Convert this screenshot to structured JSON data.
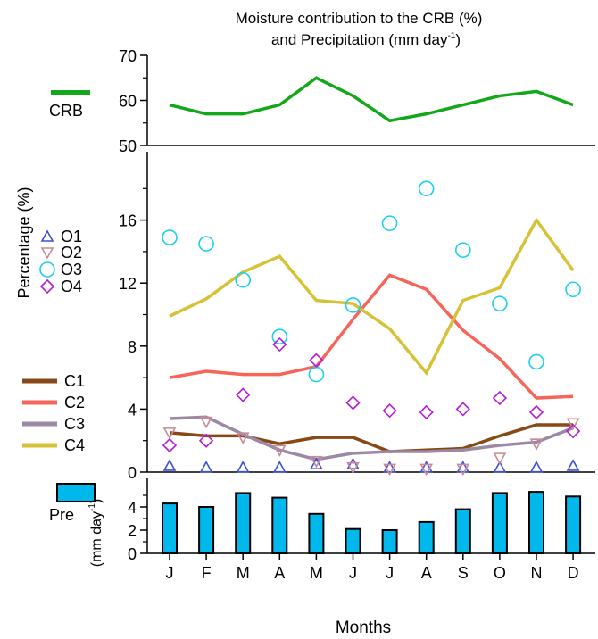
{
  "chart_data": {
    "title_line1": "Moisture contribution to the CRB (%)",
    "title_line2": "and Precipitation (mm day",
    "title_sup": "-1",
    "title_line2_end": ")",
    "xlabel": "Months",
    "categories": [
      "J",
      "F",
      "M",
      "A",
      "M",
      "J",
      "J",
      "A",
      "S",
      "O",
      "N",
      "D"
    ],
    "panels": [
      {
        "id": "top",
        "type": "line",
        "ylim": [
          50,
          70
        ],
        "yticks": [
          "50",
          "60",
          "70"
        ],
        "ytick_values": [
          50,
          60,
          70
        ],
        "legend": [
          {
            "name": "CRB",
            "color": "#12a81a"
          }
        ],
        "series": [
          {
            "name": "CRB",
            "color": "#12a81a",
            "values": [
              59,
              57,
              57,
              59,
              65,
              61,
              55.5,
              57,
              59,
              61,
              62,
              59
            ]
          }
        ]
      },
      {
        "id": "middle",
        "type": "line+scatter",
        "ylabel": "Percentage (%)",
        "ylim": [
          0,
          20
        ],
        "yticks": [
          "0",
          "4",
          "8",
          "12",
          "16"
        ],
        "ytick_values": [
          0,
          4,
          8,
          12,
          16
        ],
        "marker_series": [
          {
            "name": "O1",
            "marker": "triangle-up",
            "color": "#3c50d8",
            "values": [
              0.4,
              0.3,
              0.3,
              0.3,
              0.5,
              0.5,
              0.3,
              0.3,
              0.3,
              0.3,
              0.3,
              0.4
            ]
          },
          {
            "name": "O2",
            "marker": "triangle-down",
            "color": "#c78a97",
            "values": [
              2.5,
              3.2,
              2.2,
              1.4,
              0.7,
              0.3,
              0.2,
              0.2,
              0.2,
              0.9,
              1.8,
              3.1
            ]
          },
          {
            "name": "O3",
            "marker": "circle",
            "color": "#19d0ee",
            "values": [
              14.9,
              14.5,
              12.2,
              8.6,
              6.2,
              10.6,
              15.8,
              18,
              14.1,
              10.7,
              7,
              11.6
            ]
          },
          {
            "name": "O4",
            "marker": "diamond",
            "color": "#b51bd6",
            "values": [
              1.7,
              2,
              4.9,
              8.1,
              7.1,
              4.4,
              3.9,
              3.8,
              4,
              4.7,
              3.8,
              2.6
            ]
          }
        ],
        "line_series": [
          {
            "name": "C1",
            "color": "#874a17",
            "values": [
              2.5,
              2.3,
              2.3,
              1.8,
              2.2,
              2.2,
              1.3,
              1.4,
              1.5,
              2.3,
              3,
              3
            ]
          },
          {
            "name": "C2",
            "color": "#f7655a",
            "values": [
              6,
              6.4,
              6.2,
              6.2,
              6.7,
              9.7,
              12.5,
              11.6,
              9,
              7.2,
              4.7,
              4.8
            ]
          },
          {
            "name": "C3",
            "color": "#9b89a6",
            "values": [
              3.4,
              3.5,
              2.4,
              1.4,
              0.8,
              1.2,
              1.3,
              1.3,
              1.4,
              1.7,
              1.9,
              2.8
            ]
          },
          {
            "name": "C4",
            "color": "#d6c236",
            "values": [
              9.9,
              11,
              12.7,
              13.7,
              10.9,
              10.7,
              9.1,
              6.3,
              10.9,
              11.7,
              16,
              12.8
            ]
          }
        ]
      },
      {
        "id": "bottom",
        "type": "bar",
        "ylabel": "(mm day",
        "ylabel_sup": "-1",
        "ylabel_end": ")",
        "ylim": [
          0,
          6
        ],
        "yticks": [
          "0",
          "2",
          "4"
        ],
        "ytick_values": [
          0,
          2,
          4
        ],
        "legend": [
          {
            "name": "Pre",
            "color": "#00b8ec"
          }
        ],
        "series": [
          {
            "name": "Pre",
            "color": "#00b8ec",
            "values": [
              4.3,
              4.0,
              5.2,
              4.8,
              3.4,
              2.1,
              2.0,
              2.7,
              3.8,
              5.2,
              5.3,
              4.9
            ]
          }
        ]
      }
    ]
  }
}
